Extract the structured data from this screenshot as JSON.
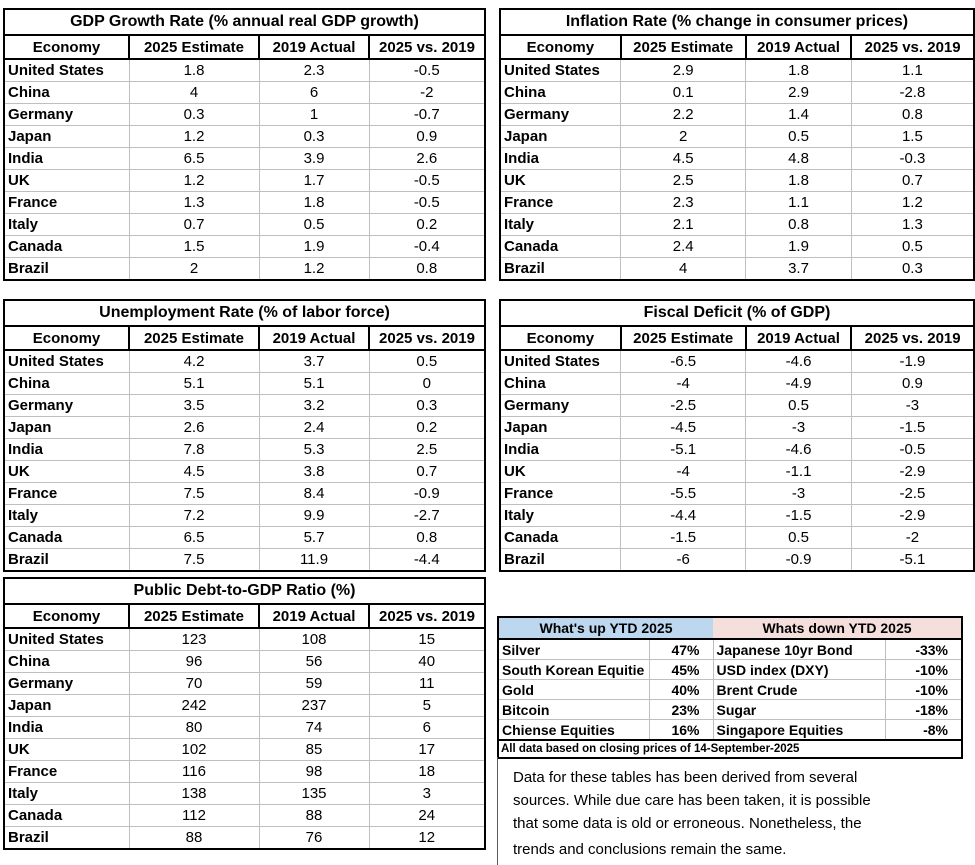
{
  "colors": {
    "up_header_bg": "#bdd7ee",
    "down_header_bg": "#f5dfdc",
    "table_border": "#000000",
    "row_separator": "#bfbfbf"
  },
  "chart_data": [
    {
      "type": "table",
      "title": "GDP Growth Rate (% annual real GDP growth)",
      "columns": [
        "Economy",
        "2025 Estimate",
        "2019 Actual",
        "2025 vs. 2019"
      ],
      "rows": [
        [
          "United States",
          1.8,
          2.3,
          -0.5
        ],
        [
          "China",
          4,
          6,
          -2
        ],
        [
          "Germany",
          0.3,
          1,
          -0.7
        ],
        [
          "Japan",
          1.2,
          0.3,
          0.9
        ],
        [
          "India",
          6.5,
          3.9,
          2.6
        ],
        [
          "UK",
          1.2,
          1.7,
          -0.5
        ],
        [
          "France",
          1.3,
          1.8,
          -0.5
        ],
        [
          "Italy",
          0.7,
          0.5,
          0.2
        ],
        [
          "Canada",
          1.5,
          1.9,
          -0.4
        ],
        [
          "Brazil",
          2,
          1.2,
          0.8
        ]
      ]
    },
    {
      "type": "table",
      "title": "Inflation Rate (% change in consumer prices)",
      "columns": [
        "Economy",
        "2025 Estimate",
        "2019 Actual",
        "2025 vs. 2019"
      ],
      "rows": [
        [
          "United States",
          2.9,
          1.8,
          1.1
        ],
        [
          "China",
          0.1,
          2.9,
          -2.8
        ],
        [
          "Germany",
          2.2,
          1.4,
          0.8
        ],
        [
          "Japan",
          2,
          0.5,
          1.5
        ],
        [
          "India",
          4.5,
          4.8,
          -0.3
        ],
        [
          "UK",
          2.5,
          1.8,
          0.7
        ],
        [
          "France",
          2.3,
          1.1,
          1.2
        ],
        [
          "Italy",
          2.1,
          0.8,
          1.3
        ],
        [
          "Canada",
          2.4,
          1.9,
          0.5
        ],
        [
          "Brazil",
          4,
          3.7,
          0.3
        ]
      ]
    },
    {
      "type": "table",
      "title": "Unemployment Rate (% of labor force)",
      "columns": [
        "Economy",
        "2025 Estimate",
        "2019 Actual",
        "2025 vs. 2019"
      ],
      "rows": [
        [
          "United States",
          4.2,
          3.7,
          0.5
        ],
        [
          "China",
          5.1,
          5.1,
          0
        ],
        [
          "Germany",
          3.5,
          3.2,
          0.3
        ],
        [
          "Japan",
          2.6,
          2.4,
          0.2
        ],
        [
          "India",
          7.8,
          5.3,
          2.5
        ],
        [
          "UK",
          4.5,
          3.8,
          0.7
        ],
        [
          "France",
          7.5,
          8.4,
          -0.9
        ],
        [
          "Italy",
          7.2,
          9.9,
          -2.7
        ],
        [
          "Canada",
          6.5,
          5.7,
          0.8
        ],
        [
          "Brazil",
          7.5,
          11.9,
          -4.4
        ]
      ]
    },
    {
      "type": "table",
      "title": "Fiscal Deficit (% of GDP)",
      "columns": [
        "Economy",
        "2025 Estimate",
        "2019 Actual",
        "2025 vs. 2019"
      ],
      "rows": [
        [
          "United States",
          -6.5,
          -4.6,
          -1.9
        ],
        [
          "China",
          -4,
          -4.9,
          0.9
        ],
        [
          "Germany",
          -2.5,
          0.5,
          -3
        ],
        [
          "Japan",
          -4.5,
          -3,
          -1.5
        ],
        [
          "India",
          -5.1,
          -4.6,
          -0.5
        ],
        [
          "UK",
          -4,
          -1.1,
          -2.9
        ],
        [
          "France",
          -5.5,
          -3,
          -2.5
        ],
        [
          "Italy",
          -4.4,
          -1.5,
          -2.9
        ],
        [
          "Canada",
          -1.5,
          0.5,
          -2
        ],
        [
          "Brazil",
          -6,
          -0.9,
          -5.1
        ]
      ]
    },
    {
      "type": "table",
      "title": "Public Debt-to-GDP Ratio (%)",
      "columns": [
        "Economy",
        "2025 Estimate",
        "2019 Actual",
        "2025 vs. 2019"
      ],
      "rows": [
        [
          "United States",
          123,
          108,
          15
        ],
        [
          "China",
          96,
          56,
          40
        ],
        [
          "Germany",
          70,
          59,
          11
        ],
        [
          "Japan",
          242,
          237,
          5
        ],
        [
          "India",
          80,
          74,
          6
        ],
        [
          "UK",
          102,
          85,
          17
        ],
        [
          "France",
          116,
          98,
          18
        ],
        [
          "Italy",
          138,
          135,
          3
        ],
        [
          "Canada",
          112,
          88,
          24
        ],
        [
          "Brazil",
          88,
          76,
          12
        ]
      ]
    },
    {
      "type": "table",
      "title_up": "What's up YTD 2025",
      "title_down": "Whats down YTD 2025",
      "rows": [
        [
          "Silver",
          "47%",
          "Japanese 10yr Bond",
          "-33%"
        ],
        [
          "South Korean Equitie",
          "45%",
          "USD index (DXY)",
          "-10%"
        ],
        [
          "Gold",
          "40%",
          "Brent Crude",
          "-10%"
        ],
        [
          "Bitcoin",
          "23%",
          "Sugar",
          "-18%"
        ],
        [
          "Chiense Equities",
          "16%",
          "Singapore Equities",
          "-8%"
        ]
      ],
      "footnote": "All data based on closing prices of 14-September-2025"
    }
  ],
  "disclaimer_lines": [
    "Data for these tables has been derived from several",
    "sources. While due care has been taken, it is possible",
    "that some data is old or erroneous. Nonetheless, the",
    "trends and conclusions remain the same."
  ]
}
